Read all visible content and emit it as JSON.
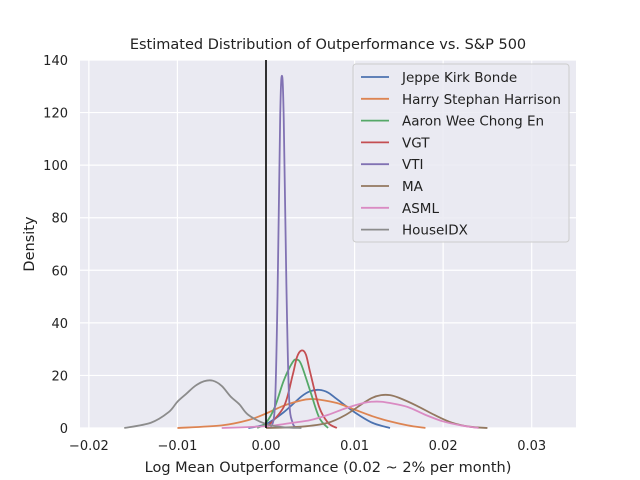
{
  "chart_data": {
    "type": "line",
    "title": "Estimated Distribution of Outperformance vs. S&P 500",
    "xlabel": "Log Mean Outperformance (0.02 ~ 2% per month)",
    "ylabel": "Density",
    "xlim": [
      -0.021,
      0.035
    ],
    "ylim": [
      0,
      140
    ],
    "xticks": [
      -0.02,
      -0.01,
      0.0,
      0.01,
      0.02,
      0.03
    ],
    "xtick_labels": [
      "−0.02",
      "−0.01",
      "0.00",
      "0.01",
      "0.02",
      "0.03"
    ],
    "yticks": [
      0,
      20,
      40,
      60,
      80,
      100,
      120,
      140
    ],
    "ytick_labels": [
      "0",
      "20",
      "40",
      "60",
      "80",
      "100",
      "120",
      "140"
    ],
    "grid": true,
    "legend_position": "top-right",
    "vline": {
      "x": 0.0,
      "color": "#000000"
    },
    "series": [
      {
        "name": "Jeppe Kirk Bonde",
        "color": "#4c72b0",
        "x": [
          -0.002,
          0.0,
          0.002,
          0.004,
          0.005,
          0.006,
          0.007,
          0.008,
          0.01,
          0.012,
          0.014
        ],
        "y": [
          0,
          1.5,
          6,
          12,
          14,
          14.5,
          13.5,
          11,
          6,
          2,
          0
        ]
      },
      {
        "name": "Harry Stephan Harrison",
        "color": "#dd8452",
        "x": [
          -0.01,
          -0.005,
          -0.002,
          0.0,
          0.002,
          0.004,
          0.005,
          0.006,
          0.008,
          0.01,
          0.012,
          0.014,
          0.016,
          0.018
        ],
        "y": [
          0,
          1,
          3,
          5.5,
          8.5,
          10.5,
          11,
          10.8,
          9.5,
          7,
          4.5,
          2.5,
          1,
          0
        ]
      },
      {
        "name": "Aaron Wee Chong En",
        "color": "#55a868",
        "x": [
          -0.001,
          0.0,
          0.001,
          0.002,
          0.003,
          0.0035,
          0.004,
          0.005,
          0.006,
          0.007
        ],
        "y": [
          0,
          2,
          8,
          18,
          25,
          26,
          24,
          14,
          4,
          0
        ]
      },
      {
        "name": "VGT",
        "color": "#c44e52",
        "x": [
          0.0,
          0.002,
          0.003,
          0.0035,
          0.004,
          0.0045,
          0.005,
          0.006,
          0.007,
          0.008
        ],
        "y": [
          0,
          8,
          20,
          27,
          29.5,
          28,
          21,
          8,
          2,
          0
        ]
      },
      {
        "name": "VTI",
        "color": "#8172b3",
        "x": [
          0.0005,
          0.001,
          0.0013,
          0.0016,
          0.0018,
          0.002,
          0.0023,
          0.0026,
          0.003,
          0.0035
        ],
        "y": [
          0,
          8,
          50,
          118,
          134,
          118,
          55,
          12,
          2,
          0
        ]
      },
      {
        "name": "MA",
        "color": "#937860",
        "x": [
          0.0,
          0.004,
          0.007,
          0.009,
          0.011,
          0.012,
          0.013,
          0.014,
          0.015,
          0.017,
          0.019,
          0.021,
          0.023,
          0.025
        ],
        "y": [
          0,
          0.5,
          2,
          5,
          9.5,
          11.5,
          12.5,
          12.5,
          11.5,
          8.5,
          5,
          2,
          0.5,
          0
        ]
      },
      {
        "name": "ASML",
        "color": "#da8bc3",
        "x": [
          -0.005,
          -0.001,
          0.001,
          0.003,
          0.005,
          0.007,
          0.009,
          0.011,
          0.012,
          0.013,
          0.014,
          0.016,
          0.018,
          0.02,
          0.022,
          0.024
        ],
        "y": [
          0,
          0.5,
          1,
          2,
          3,
          5,
          7.5,
          9.5,
          10,
          10,
          9.5,
          8,
          5,
          2.5,
          1,
          0
        ]
      },
      {
        "name": "HouseIDX",
        "color": "#8c8c8c",
        "x": [
          -0.016,
          -0.013,
          -0.011,
          -0.01,
          -0.009,
          -0.008,
          -0.007,
          -0.006,
          -0.005,
          -0.004,
          -0.003,
          -0.002,
          0.0,
          0.002,
          0.004
        ],
        "y": [
          0,
          2,
          6,
          10,
          13,
          16,
          17.8,
          18,
          16,
          12,
          9,
          5,
          1.5,
          0.3,
          0
        ]
      }
    ]
  }
}
